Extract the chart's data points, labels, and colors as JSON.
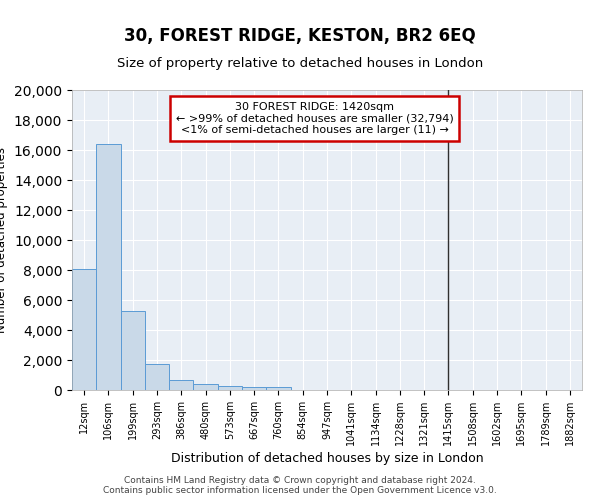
{
  "title": "30, FOREST RIDGE, KESTON, BR2 6EQ",
  "subtitle": "Size of property relative to detached houses in London",
  "xlabel": "Distribution of detached houses by size in London",
  "ylabel": "Number of detached properties",
  "bin_labels": [
    "12sqm",
    "106sqm",
    "199sqm",
    "293sqm",
    "386sqm",
    "480sqm",
    "573sqm",
    "667sqm",
    "760sqm",
    "854sqm",
    "947sqm",
    "1041sqm",
    "1134sqm",
    "1228sqm",
    "1321sqm",
    "1415sqm",
    "1508sqm",
    "1602sqm",
    "1695sqm",
    "1789sqm",
    "1882sqm"
  ],
  "bar_values": [
    8100,
    16400,
    5300,
    1750,
    700,
    380,
    280,
    200,
    170,
    0,
    0,
    0,
    0,
    0,
    0,
    0,
    0,
    0,
    0,
    0,
    0
  ],
  "bar_color": "#c9d9e8",
  "bar_edge_color": "#5b9bd5",
  "vline_index": 15,
  "vline_color": "#2f2f2f",
  "annotation_text": "30 FOREST RIDGE: 1420sqm\n← >99% of detached houses are smaller (32,794)\n<1% of semi-detached houses are larger (11) →",
  "annotation_box_color": "#ffffff",
  "annotation_box_edge_color": "#cc0000",
  "ylim": [
    0,
    20000
  ],
  "yticks": [
    0,
    2000,
    4000,
    6000,
    8000,
    10000,
    12000,
    14000,
    16000,
    18000,
    20000
  ],
  "background_color": "#e8eef5",
  "footer_line1": "Contains HM Land Registry data © Crown copyright and database right 2024.",
  "footer_line2": "Contains public sector information licensed under the Open Government Licence v3.0."
}
